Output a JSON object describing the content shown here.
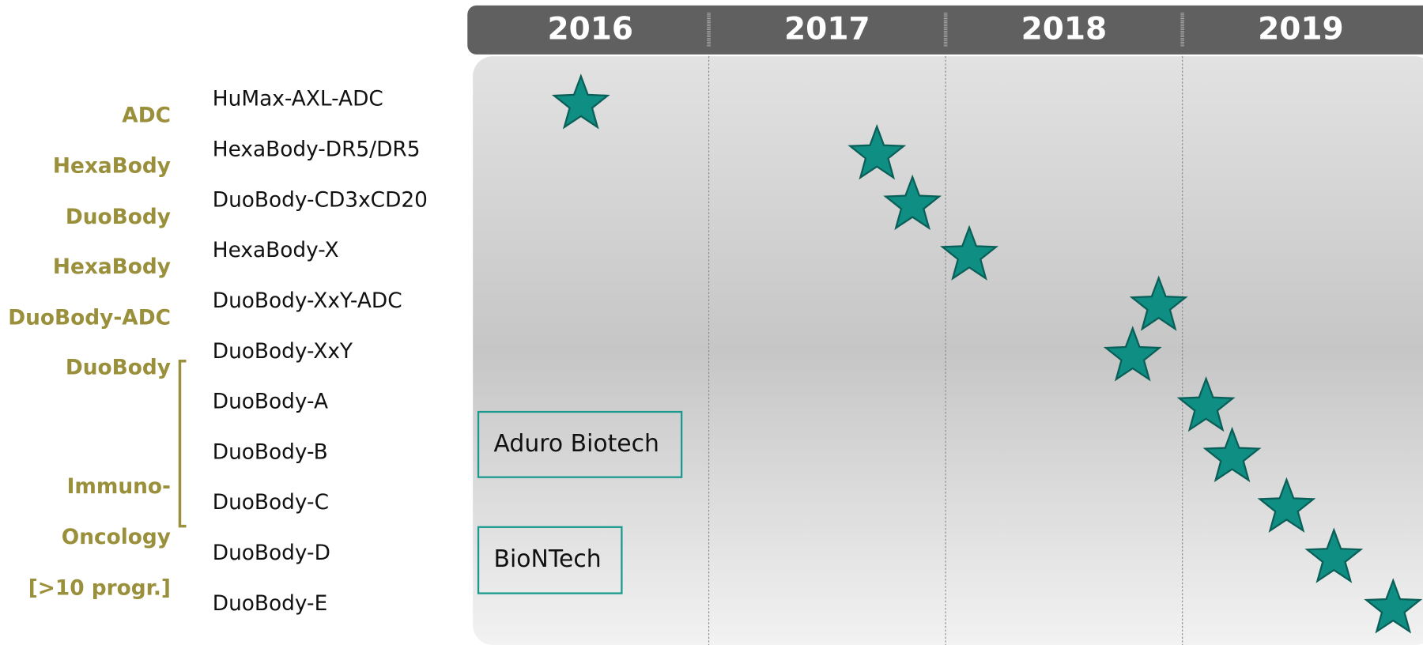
{
  "header": {
    "years": [
      "2016",
      "2017",
      "2018",
      "2019"
    ]
  },
  "timeline": {
    "xlim": [
      2016,
      2020
    ]
  },
  "platform_labels": [
    "ADC",
    "HexaBody",
    "DuoBody",
    "HexaBody",
    "DuoBody-ADC",
    "DuoBody",
    "Immuno-",
    "Oncology",
    "[>10 progr.]"
  ],
  "programs": [
    {
      "name": "HuMax-AXL-ADC",
      "start": 2016.46
    },
    {
      "name": "HexaBody-DR5/DR5",
      "start": 2017.71
    },
    {
      "name": "DuoBody-CD3xCD20",
      "start": 2017.86
    },
    {
      "name": "HexaBody-X",
      "start": 2018.1
    },
    {
      "name": "DuoBody-XxY-ADC",
      "start": 2018.9
    },
    {
      "name": "DuoBody-XxY",
      "start": 2018.79
    },
    {
      "name": "DuoBody-A",
      "start": 2019.1
    },
    {
      "name": "DuoBody-B",
      "start": 2019.21
    },
    {
      "name": "DuoBody-C",
      "start": 2019.44
    },
    {
      "name": "DuoBody-D",
      "start": 2019.64
    },
    {
      "name": "DuoBody-E",
      "start": 2019.89
    }
  ],
  "partners": [
    "Aduro Biotech",
    "BioNTech"
  ]
}
